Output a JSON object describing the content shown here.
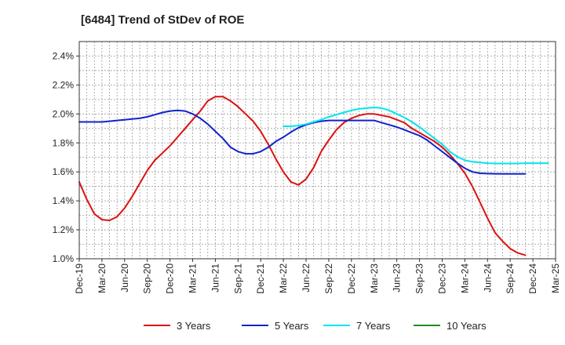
{
  "chart_data": {
    "type": "line",
    "title": "[6484]  Trend of StDev of ROE",
    "xlabel": "",
    "ylabel": "",
    "x_ticks": [
      "Dec-19",
      "Mar-20",
      "Jun-20",
      "Sep-20",
      "Dec-20",
      "Mar-21",
      "Jun-21",
      "Sep-21",
      "Dec-21",
      "Mar-22",
      "Jun-22",
      "Sep-22",
      "Dec-22",
      "Mar-23",
      "Jun-23",
      "Sep-23",
      "Dec-23",
      "Mar-24",
      "Jun-24",
      "Sep-24",
      "Dec-24",
      "Mar-25"
    ],
    "y_ticks": [
      "1.0%",
      "1.2%",
      "1.4%",
      "1.6%",
      "1.8%",
      "2.0%",
      "2.2%",
      "2.4%"
    ],
    "ylim": [
      1.0,
      2.5
    ],
    "y_unit": "%",
    "grid": true,
    "legend_position": "bottom",
    "series": [
      {
        "name": "3 Years",
        "color": "#dd1111",
        "points": [
          [
            "Dec-19",
            1.53
          ],
          [
            "Jan-20",
            1.41
          ],
          [
            "Feb-20",
            1.31
          ],
          [
            "Mar-20",
            1.27
          ],
          [
            "Apr-20",
            1.265
          ],
          [
            "May-20",
            1.29
          ],
          [
            "Jun-20",
            1.35
          ],
          [
            "Jul-20",
            1.43
          ],
          [
            "Aug-20",
            1.52
          ],
          [
            "Sep-20",
            1.61
          ],
          [
            "Oct-20",
            1.68
          ],
          [
            "Nov-20",
            1.73
          ],
          [
            "Dec-20",
            1.78
          ],
          [
            "Jan-21",
            1.84
          ],
          [
            "Feb-21",
            1.9
          ],
          [
            "Mar-21",
            1.96
          ],
          [
            "Apr-21",
            2.02
          ],
          [
            "May-21",
            2.09
          ],
          [
            "Jun-21",
            2.12
          ],
          [
            "Jul-21",
            2.12
          ],
          [
            "Aug-21",
            2.09
          ],
          [
            "Sep-21",
            2.05
          ],
          [
            "Oct-21",
            2.0
          ],
          [
            "Nov-21",
            1.95
          ],
          [
            "Dec-21",
            1.88
          ],
          [
            "Jan-22",
            1.79
          ],
          [
            "Feb-22",
            1.69
          ],
          [
            "Mar-22",
            1.6
          ],
          [
            "Apr-22",
            1.53
          ],
          [
            "May-22",
            1.51
          ],
          [
            "Jun-22",
            1.55
          ],
          [
            "Jul-22",
            1.63
          ],
          [
            "Aug-22",
            1.74
          ],
          [
            "Sep-22",
            1.82
          ],
          [
            "Oct-22",
            1.89
          ],
          [
            "Nov-22",
            1.94
          ],
          [
            "Dec-22",
            1.97
          ],
          [
            "Jan-23",
            1.99
          ],
          [
            "Feb-23",
            2.0
          ],
          [
            "Mar-23",
            2.0
          ],
          [
            "Apr-23",
            1.99
          ],
          [
            "May-23",
            1.98
          ],
          [
            "Jun-23",
            1.96
          ],
          [
            "Jul-23",
            1.94
          ],
          [
            "Aug-23",
            1.9
          ],
          [
            "Sep-23",
            1.87
          ],
          [
            "Oct-23",
            1.84
          ],
          [
            "Nov-23",
            1.81
          ],
          [
            "Dec-23",
            1.77
          ],
          [
            "Jan-24",
            1.72
          ],
          [
            "Feb-24",
            1.66
          ],
          [
            "Mar-24",
            1.59
          ],
          [
            "Apr-24",
            1.5
          ],
          [
            "May-24",
            1.39
          ],
          [
            "Jun-24",
            1.28
          ],
          [
            "Jul-24",
            1.18
          ],
          [
            "Aug-24",
            1.12
          ],
          [
            "Sep-24",
            1.07
          ],
          [
            "Oct-24",
            1.04
          ],
          [
            "Nov-24",
            1.025
          ]
        ]
      },
      {
        "name": "5 Years",
        "color": "#1122cc",
        "points": [
          [
            "Dec-19",
            1.945
          ],
          [
            "Jan-20",
            1.945
          ],
          [
            "Feb-20",
            1.945
          ],
          [
            "Mar-20",
            1.945
          ],
          [
            "Apr-20",
            1.95
          ],
          [
            "May-20",
            1.955
          ],
          [
            "Jun-20",
            1.96
          ],
          [
            "Jul-20",
            1.965
          ],
          [
            "Aug-20",
            1.97
          ],
          [
            "Sep-20",
            1.98
          ],
          [
            "Oct-20",
            1.995
          ],
          [
            "Nov-20",
            2.01
          ],
          [
            "Dec-20",
            2.02
          ],
          [
            "Jan-21",
            2.025
          ],
          [
            "Feb-21",
            2.02
          ],
          [
            "Mar-21",
            2.0
          ],
          [
            "Apr-21",
            1.97
          ],
          [
            "May-21",
            1.93
          ],
          [
            "Jun-21",
            1.88
          ],
          [
            "Jul-21",
            1.83
          ],
          [
            "Aug-21",
            1.77
          ],
          [
            "Sep-21",
            1.74
          ],
          [
            "Oct-21",
            1.725
          ],
          [
            "Nov-21",
            1.725
          ],
          [
            "Dec-21",
            1.74
          ],
          [
            "Jan-22",
            1.77
          ],
          [
            "Feb-22",
            1.81
          ],
          [
            "Mar-22",
            1.84
          ],
          [
            "Apr-22",
            1.875
          ],
          [
            "May-22",
            1.905
          ],
          [
            "Jun-22",
            1.925
          ],
          [
            "Jul-22",
            1.94
          ],
          [
            "Aug-22",
            1.95
          ],
          [
            "Sep-22",
            1.955
          ],
          [
            "Oct-22",
            1.955
          ],
          [
            "Nov-22",
            1.955
          ],
          [
            "Dec-22",
            1.955
          ],
          [
            "Jan-23",
            1.955
          ],
          [
            "Feb-23",
            1.955
          ],
          [
            "Mar-23",
            1.955
          ],
          [
            "Apr-23",
            1.94
          ],
          [
            "May-23",
            1.925
          ],
          [
            "Jun-23",
            1.91
          ],
          [
            "Jul-23",
            1.89
          ],
          [
            "Aug-23",
            1.87
          ],
          [
            "Sep-23",
            1.85
          ],
          [
            "Oct-23",
            1.82
          ],
          [
            "Nov-23",
            1.78
          ],
          [
            "Dec-23",
            1.74
          ],
          [
            "Jan-24",
            1.7
          ],
          [
            "Feb-24",
            1.66
          ],
          [
            "Mar-24",
            1.625
          ],
          [
            "Apr-24",
            1.6
          ],
          [
            "May-24",
            1.59
          ],
          [
            "Jun-24",
            1.588
          ],
          [
            "Jul-24",
            1.587
          ],
          [
            "Aug-24",
            1.586
          ],
          [
            "Sep-24",
            1.586
          ],
          [
            "Oct-24",
            1.586
          ],
          [
            "Nov-24",
            1.586
          ]
        ]
      },
      {
        "name": "7 Years",
        "color": "#00e5ee",
        "points": [
          [
            "Dec-19",
            1.915
          ],
          [
            "Jan-20",
            1.915
          ],
          [
            "Feb-20",
            1.92
          ],
          [
            "Mar-20",
            1.93
          ],
          [
            "Apr-20",
            1.945
          ],
          [
            "May-20",
            1.96
          ],
          [
            "Jun-20",
            1.98
          ],
          [
            "Jul-20",
            1.995
          ],
          [
            "Aug-20",
            2.01
          ],
          [
            "Sep-20",
            2.025
          ],
          [
            "Oct-20",
            2.035
          ],
          [
            "Nov-20",
            2.04
          ],
          [
            "Dec-20",
            2.045
          ],
          [
            "Jan-21",
            2.04
          ],
          [
            "Feb-21",
            2.025
          ],
          [
            "Mar-21",
            2.0
          ],
          [
            "Apr-21",
            1.975
          ],
          [
            "May-21",
            1.945
          ],
          [
            "Jun-21",
            1.91
          ],
          [
            "Jul-21",
            1.87
          ],
          [
            "Aug-21",
            1.83
          ],
          [
            "Sep-21",
            1.79
          ],
          [
            "Oct-21",
            1.74
          ],
          [
            "Nov-21",
            1.705
          ],
          [
            "Dec-21",
            1.68
          ],
          [
            "Jan-22",
            1.67
          ],
          [
            "Feb-22",
            1.665
          ],
          [
            "Mar-22",
            1.66
          ],
          [
            "Apr-22",
            1.658
          ],
          [
            "May-22",
            1.658
          ],
          [
            "Jun-22",
            1.658
          ],
          [
            "Jul-22",
            1.658
          ],
          [
            "Aug-22",
            1.66
          ],
          [
            "Sep-22",
            1.66
          ],
          [
            "Oct-22",
            1.66
          ],
          [
            "Nov-22",
            1.66
          ]
        ],
        "start": "Mar-22"
      },
      {
        "name": "10 Years",
        "color": "#228b22",
        "points": []
      }
    ]
  }
}
